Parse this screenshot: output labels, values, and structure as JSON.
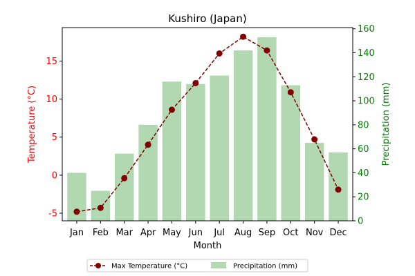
{
  "chart_data": {
    "type": "bar+line",
    "title": "Kushiro (Japan)",
    "categories": [
      "Jan",
      "Feb",
      "Mar",
      "Apr",
      "May",
      "Jun",
      "Jul",
      "Aug",
      "Sep",
      "Oct",
      "Nov",
      "Dec"
    ],
    "xlabel": "Month",
    "left_axis": {
      "label": "Temperature (°C)",
      "color": "#ff0000",
      "ylim": [
        -6,
        19.4
      ],
      "ticks": [
        -5,
        0,
        5,
        10,
        15
      ]
    },
    "right_axis": {
      "label": "Precipitation (mm)",
      "color": "#008000",
      "ylim": [
        0,
        161
      ],
      "ticks": [
        0,
        20,
        40,
        60,
        80,
        100,
        120,
        140,
        160
      ]
    },
    "series": [
      {
        "name": "Max Temperature (°C)",
        "kind": "line",
        "axis": "left",
        "color": "#800000",
        "values": [
          -4.8,
          -4.3,
          -0.4,
          4.0,
          8.6,
          12.1,
          16.0,
          18.2,
          16.4,
          10.9,
          4.7,
          -1.9
        ]
      },
      {
        "name": "Precipitation (mm)",
        "kind": "bar",
        "axis": "right",
        "color": "#b2d8b2",
        "values": [
          40,
          25,
          56,
          80,
          116,
          114,
          121,
          142,
          153,
          113,
          65,
          57
        ]
      }
    ],
    "grid": false,
    "legend": "below-center"
  }
}
